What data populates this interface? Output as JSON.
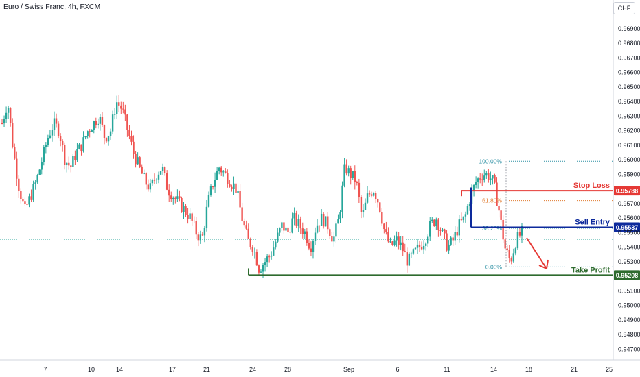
{
  "header": {
    "title": "Euro / Swiss Franc, 4h, FXCM",
    "currency": "CHF"
  },
  "chart_data": {
    "type": "candlestick",
    "title": "Euro / Swiss Franc, 4h, FXCM",
    "yunit": "CHF",
    "ylim": [
      0.9465,
      0.9705
    ],
    "yticks": [
      "0.96900",
      "0.96800",
      "0.96700",
      "0.96600",
      "0.96500",
      "0.96400",
      "0.96300",
      "0.96200",
      "0.96100",
      "0.96000",
      "0.95900",
      "0.95700",
      "0.95600",
      "0.95500",
      "0.95400",
      "0.95300",
      "0.95100",
      "0.95000",
      "0.94900",
      "0.94800",
      "0.94700"
    ],
    "xticks": [
      "7",
      "10",
      "14",
      "17",
      "21",
      "24",
      "28",
      "Sep",
      "6",
      "11",
      "14",
      "18",
      "21",
      "25"
    ],
    "up_color": "#26a69a",
    "down_color": "#ef5350",
    "price_path": [
      0.9625,
      0.964,
      0.9605,
      0.958,
      0.9565,
      0.9575,
      0.9585,
      0.96,
      0.9615,
      0.9625,
      0.962,
      0.96,
      0.9595,
      0.9605,
      0.961,
      0.962,
      0.9625,
      0.963,
      0.9615,
      0.962,
      0.964,
      0.9635,
      0.962,
      0.9605,
      0.9595,
      0.9585,
      0.958,
      0.959,
      0.9595,
      0.958,
      0.9575,
      0.957,
      0.9565,
      0.956,
      0.955,
      0.9545,
      0.957,
      0.9585,
      0.9595,
      0.959,
      0.9585,
      0.958,
      0.956,
      0.9545,
      0.954,
      0.9525,
      0.953,
      0.9535,
      0.9545,
      0.9555,
      0.955,
      0.956,
      0.9555,
      0.955,
      0.954,
      0.9555,
      0.956,
      0.9555,
      0.9545,
      0.956,
      0.9595,
      0.959,
      0.9585,
      0.956,
      0.9575,
      0.958,
      0.957,
      0.955,
      0.954,
      0.9545,
      0.954,
      0.953,
      0.9535,
      0.954,
      0.9545,
      0.9555,
      0.956,
      0.955,
      0.954,
      0.9545,
      0.9555,
      0.956,
      0.9575,
      0.9585,
      0.959,
      0.959,
      0.9585,
      0.9565,
      0.954,
      0.953,
      0.9545,
      0.955
    ],
    "levels": {
      "stop_loss": {
        "label": "Stop Loss",
        "value": "0.95788",
        "color": "#e53935"
      },
      "sell_entry": {
        "label": "Sell Entry",
        "value": "0.95537",
        "color": "#0d2a9c"
      },
      "take_profit": {
        "label": "Take Profit",
        "value": "0.95208",
        "color": "#2e6b2e"
      }
    },
    "fibonacci": [
      {
        "label": "100.00%",
        "value": 0.9599
      },
      {
        "label": "61.80%",
        "value": 0.9572
      },
      {
        "label": "38.20%",
        "value": 0.9553
      },
      {
        "label": "0.00%",
        "value": 0.95265
      }
    ],
    "current_price": 0.95455,
    "annotations": [
      "arrow pointing down toward Take Profit"
    ]
  }
}
